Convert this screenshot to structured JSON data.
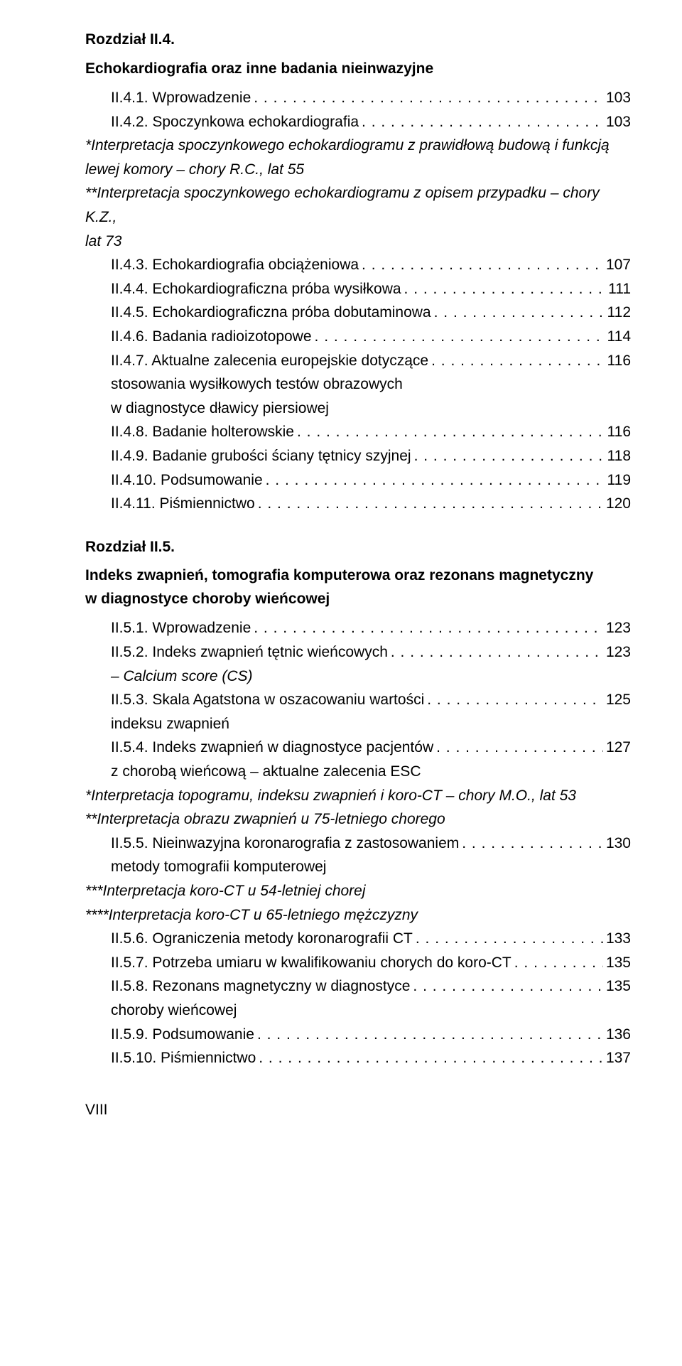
{
  "fontsize_pt": 21,
  "text_color": "#000000",
  "background_color": "#ffffff",
  "dot_color": "#000000",
  "chapter4": {
    "heading_line1": "Rozdział II.4.",
    "heading_line2": "Echokardiografia oraz inne badania nieinwazyjne",
    "items": [
      {
        "label": "II.4.1. Wprowadzenie",
        "page": "103"
      },
      {
        "label": "II.4.2. Spoczynkowa echokardiografia",
        "page": "103"
      }
    ],
    "note1_line1": "*Interpretacja spoczynkowego echokardiogramu z prawidłową budową i funkcją",
    "note1_line2": "lewej komory – chory R.C., lat 55",
    "note2_line1": "**Interpretacja spoczynkowego echokardiogramu z opisem przypadku – chory K.Z.,",
    "note2_line2": "lat 73",
    "items2": [
      {
        "label": "II.4.3. Echokardiografia obciążeniowa",
        "page": "107"
      },
      {
        "label": "II.4.4. Echokardiograficzna próba wysiłkowa",
        "page": "111"
      },
      {
        "label": "II.4.5. Echokardiograficzna próba dobutaminowa",
        "page": "112"
      },
      {
        "label": "II.4.6. Badania radioizotopowe",
        "page": "114"
      },
      {
        "label": "II.4.7. Aktualne zalecenia europejskie dotyczące",
        "page": "116",
        "cont": [
          "stosowania wysiłkowych testów obrazowych",
          "w diagnostyce dławicy piersiowej"
        ]
      },
      {
        "label": "II.4.8. Badanie holterowskie",
        "page": "116"
      },
      {
        "label": "II.4.9. Badanie grubości ściany tętnicy szyjnej",
        "page": "118"
      },
      {
        "label": "II.4.10. Podsumowanie",
        "page": "119"
      },
      {
        "label": "II.4.11. Piśmiennictwo",
        "page": "120"
      }
    ]
  },
  "chapter5": {
    "heading_line1": "Rozdział II.5.",
    "heading_line2": "Indeks zwapnień, tomografia komputerowa oraz rezonans magnetyczny",
    "heading_line3": "w diagnostyce choroby wieńcowej",
    "items1": [
      {
        "label": "II.5.1. Wprowadzenie",
        "page": "123"
      },
      {
        "label": "II.5.2. Indeks zwapnień tętnic wieńcowych",
        "page": "123",
        "cont_italic": [
          "– Calcium score (CS)"
        ]
      },
      {
        "label": "II.5.3. Skala Agatstona w oszacowaniu wartości",
        "page": "125",
        "cont": [
          "indeksu zwapnień"
        ]
      },
      {
        "label": "II.5.4. Indeks zwapnień w diagnostyce pacjentów",
        "page": "127",
        "cont": [
          "z chorobą wieńcową – aktualne zalecenia ESC"
        ]
      }
    ],
    "note1": "*Interpretacja topogramu, indeksu zwapnień i koro-CT – chory M.O., lat 53",
    "note2": "**Interpretacja obrazu zwapnień u 75-letniego chorego",
    "items2": [
      {
        "label": "II.5.5. Nieinwazyjna koronarografia z zastosowaniem",
        "page": "130",
        "cont": [
          "metody tomografii komputerowej"
        ]
      }
    ],
    "note3": "***Interpretacja koro-CT u 54-letniej chorej",
    "note4": "****Interpretacja koro-CT u 65-letniego mężczyzny",
    "items3": [
      {
        "label": "II.5.6. Ograniczenia metody koronarografii CT",
        "page": "133"
      },
      {
        "label": "II.5.7. Potrzeba umiaru w kwalifikowaniu chorych do koro-CT",
        "page": "135"
      },
      {
        "label": "II.5.8. Rezonans magnetyczny w diagnostyce",
        "page": "135",
        "cont": [
          "choroby wieńcowej"
        ]
      },
      {
        "label": "II.5.9. Podsumowanie",
        "page": "136"
      },
      {
        "label": "II.5.10. Piśmiennictwo",
        "page": "137"
      }
    ]
  },
  "page_number": "VIII"
}
